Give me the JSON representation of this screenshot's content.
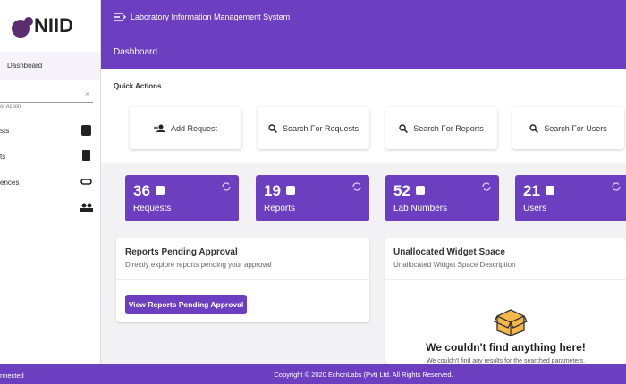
{
  "sidebar": {
    "logo": "NIID",
    "active_item": "Dashboard",
    "search_hint": "or Action",
    "search_clear": "×",
    "menu": [
      "sts",
      "ts",
      "ences"
    ],
    "status": "nnected"
  },
  "header": {
    "title": "Laboratory Information Management System",
    "page": "Dashboard"
  },
  "quick_actions": {
    "title": "Quick Actions",
    "buttons": [
      "Add Request",
      "Search For Requests",
      "Search For Reports",
      "Search For Users"
    ]
  },
  "stats": [
    {
      "value": 36,
      "label": "Requests"
    },
    {
      "value": 19,
      "label": "Reports"
    },
    {
      "value": 52,
      "label": "Lab Numbers"
    },
    {
      "value": 21,
      "label": "Users"
    }
  ],
  "widgets": [
    {
      "title": "Reports Pending Approval",
      "description": "Directly explore reports pending your approval",
      "button": "View Reports Pending Approval"
    },
    {
      "title": "Unallocated Widget Space",
      "description": "Unallocated Widget Space Description",
      "empty_title": "We couldn't find anything here!",
      "empty_text": "We couldn't find any results for the searched parameters."
    }
  ],
  "footer": {
    "copyright": "Copyright © 2020 EchonLabs (Pvt) Ltd. All Rights Reserved."
  }
}
